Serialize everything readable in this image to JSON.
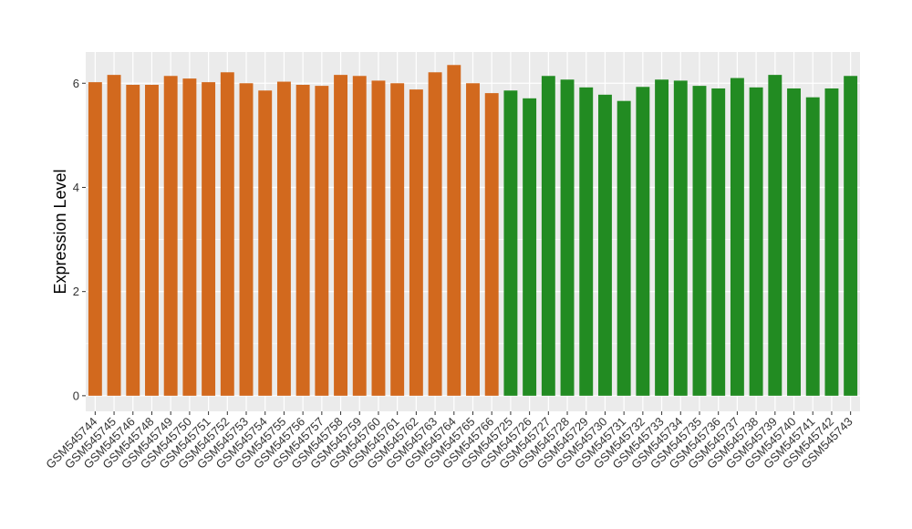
{
  "chart_data": {
    "type": "bar",
    "title": "",
    "xlabel": "",
    "ylabel": "Expression Level",
    "ylim": [
      -0.3,
      6.6
    ],
    "yticks": [
      0,
      2,
      4,
      6
    ],
    "grid": true,
    "legend": "none",
    "colors": {
      "group_a": "#D2691E",
      "group_b": "#228B22",
      "panel_bg": "#EBEBEB",
      "grid": "#FFFFFF",
      "tick": "#333333"
    },
    "categories": [
      "GSM545744",
      "GSM545745",
      "GSM545746",
      "GSM545748",
      "GSM545749",
      "GSM545750",
      "GSM545751",
      "GSM545752",
      "GSM545753",
      "GSM545754",
      "GSM545755",
      "GSM545756",
      "GSM545757",
      "GSM545758",
      "GSM545759",
      "GSM545760",
      "GSM545761",
      "GSM545762",
      "GSM545763",
      "GSM545764",
      "GSM545765",
      "GSM545766",
      "GSM545725",
      "GSM545726",
      "GSM545727",
      "GSM545728",
      "GSM545729",
      "GSM545730",
      "GSM545731",
      "GSM545732",
      "GSM545733",
      "GSM545734",
      "GSM545735",
      "GSM545736",
      "GSM545737",
      "GSM545738",
      "GSM545739",
      "GSM545740",
      "GSM545741",
      "GSM545742",
      "GSM545743"
    ],
    "values": [
      6.02,
      6.16,
      5.97,
      5.97,
      6.14,
      6.09,
      6.02,
      6.21,
      6.0,
      5.86,
      6.03,
      5.97,
      5.95,
      6.16,
      6.14,
      6.05,
      6.0,
      5.88,
      6.21,
      6.35,
      6.0,
      5.81,
      5.86,
      5.71,
      6.14,
      6.07,
      5.92,
      5.78,
      5.66,
      5.93,
      6.07,
      6.05,
      5.95,
      5.9,
      6.1,
      5.92,
      6.16,
      5.9,
      5.73,
      5.9,
      6.14
    ],
    "group": [
      "a",
      "a",
      "a",
      "a",
      "a",
      "a",
      "a",
      "a",
      "a",
      "a",
      "a",
      "a",
      "a",
      "a",
      "a",
      "a",
      "a",
      "a",
      "a",
      "a",
      "a",
      "a",
      "b",
      "b",
      "b",
      "b",
      "b",
      "b",
      "b",
      "b",
      "b",
      "b",
      "b",
      "b",
      "b",
      "b",
      "b",
      "b",
      "b",
      "b",
      "b"
    ]
  }
}
